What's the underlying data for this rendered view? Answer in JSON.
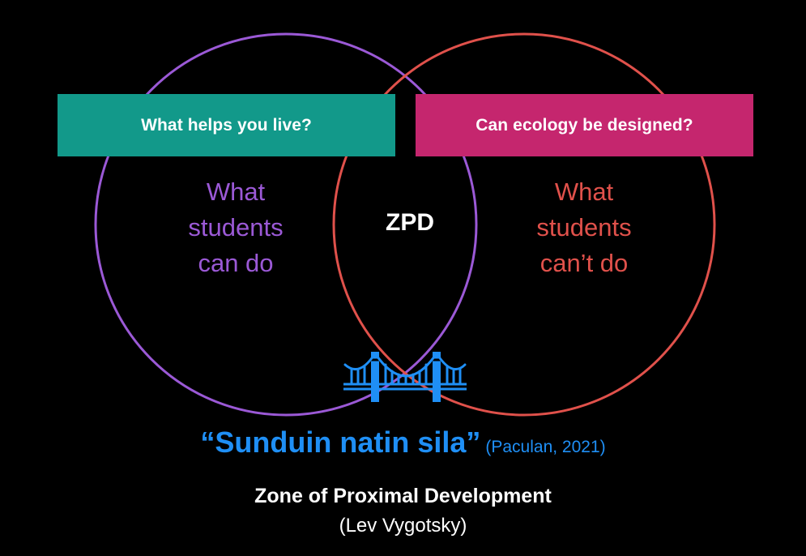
{
  "colors": {
    "background": "#000000",
    "left_circle": "#9b59d6",
    "right_circle": "#e0514b",
    "left_box": "#12998a",
    "right_box": "#c5266e",
    "accent_blue": "#1f8ff5",
    "white": "#ffffff"
  },
  "left_box": {
    "label": "What helps you live?"
  },
  "right_box": {
    "label": "Can ecology be designed?"
  },
  "left_circle": {
    "lines": [
      "What",
      "students",
      "can do"
    ]
  },
  "right_circle": {
    "lines": [
      "What",
      "students",
      "can’t do"
    ]
  },
  "center": {
    "label": "ZPD",
    "icon": "bridge-icon"
  },
  "quote": {
    "text": "“Sunduin natin sila”",
    "citation": "(Paculan, 2021)"
  },
  "footer": {
    "title": "Zone of Proximal Development",
    "subtitle": "(Lev Vygotsky)"
  }
}
